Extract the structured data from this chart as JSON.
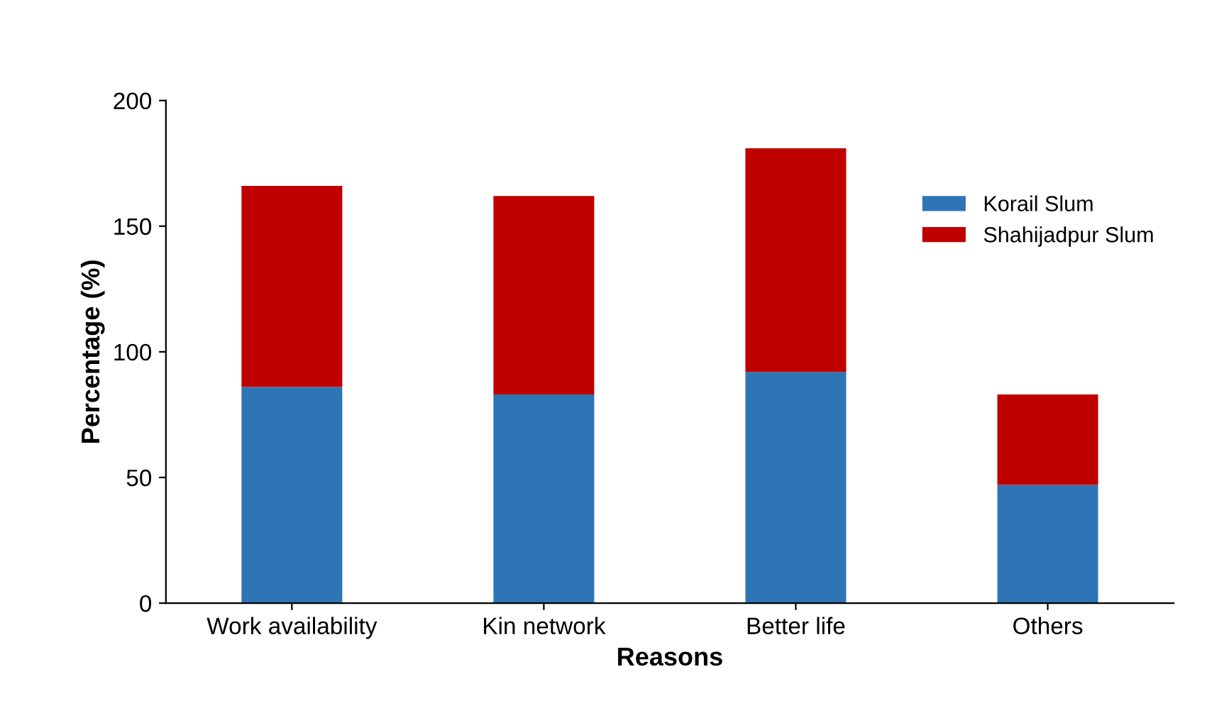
{
  "chart_data": {
    "type": "bar",
    "stacked": true,
    "xlabel": "Reasons",
    "ylabel": "Percentage (%)",
    "categories": [
      "Work availability",
      "Kin network",
      "Better life",
      "Others"
    ],
    "series": [
      {
        "name": "Korail Slum",
        "color": "#2e75b6",
        "values": [
          86,
          83,
          92,
          47
        ]
      },
      {
        "name": "Shahijadpur Slum",
        "color": "#c00000",
        "values": [
          80,
          79,
          89,
          36
        ]
      }
    ],
    "ylim": [
      0,
      200
    ],
    "yticks": [
      0,
      50,
      100,
      150,
      200
    ],
    "grid": false,
    "legend": "top right"
  }
}
